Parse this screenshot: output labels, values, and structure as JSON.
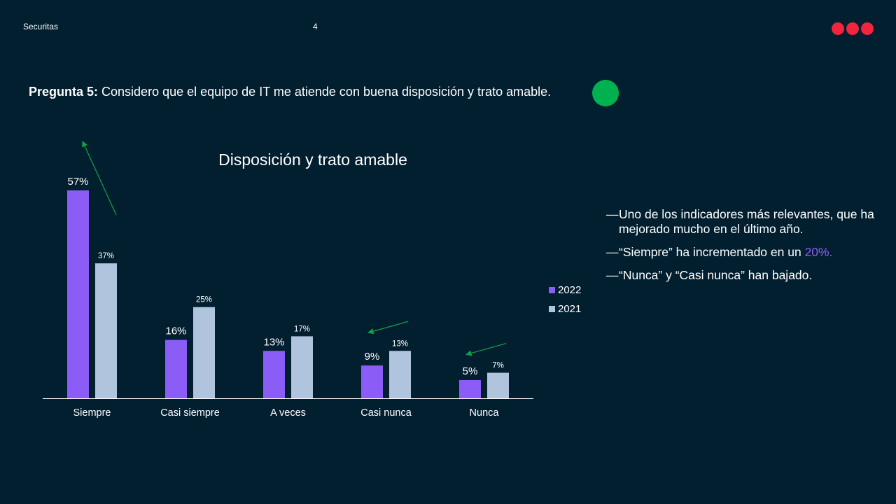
{
  "header": {
    "brand": "Securitas",
    "page_number": "4"
  },
  "question": {
    "label": "Pregunta 5:",
    "text": "Considero que el equipo de IT me atiende con buena disposición y trato amable."
  },
  "colors": {
    "background": "#021f30",
    "series_2022": "#8b5cf6",
    "series_2021": "#b0c4de",
    "logo": "#f1253e",
    "status": "#00b14f",
    "arrows": "#12a24b"
  },
  "chart_data": {
    "type": "bar",
    "title": "Disposición y trato amable",
    "categories": [
      "Siempre",
      "Casi siempre",
      "A veces",
      "Casi nunca",
      "Nunca"
    ],
    "series": [
      {
        "name": "2022",
        "values": [
          57,
          16,
          13,
          9,
          5
        ],
        "labels": [
          "57%",
          "16%",
          "13%",
          "9%",
          "5%"
        ]
      },
      {
        "name": "2021",
        "values": [
          37,
          25,
          17,
          13,
          7
        ],
        "labels": [
          "37%",
          "25%",
          "17%",
          "13%",
          "7%"
        ]
      }
    ],
    "ylim": [
      0,
      57
    ],
    "grid": false,
    "legend_position": "right",
    "trend_annotations": [
      {
        "category": "Siempre",
        "direction": "up"
      },
      {
        "category": "Casi nunca",
        "direction": "down"
      },
      {
        "category": "Nunca",
        "direction": "down"
      }
    ]
  },
  "legend": {
    "items": [
      {
        "label": "2022",
        "color": "#8b5cf6"
      },
      {
        "label": "2021",
        "color": "#b0c4de"
      }
    ]
  },
  "notes": {
    "note1": "Uno de los indicadores más relevantes, que ha mejorado mucho en el último año.",
    "note2_prefix": "“Siempre” ha incrementado en un ",
    "note2_highlight": "20%.",
    "note3": "“Nunca” y “Casi nunca” han bajado.",
    "dash": "—"
  }
}
